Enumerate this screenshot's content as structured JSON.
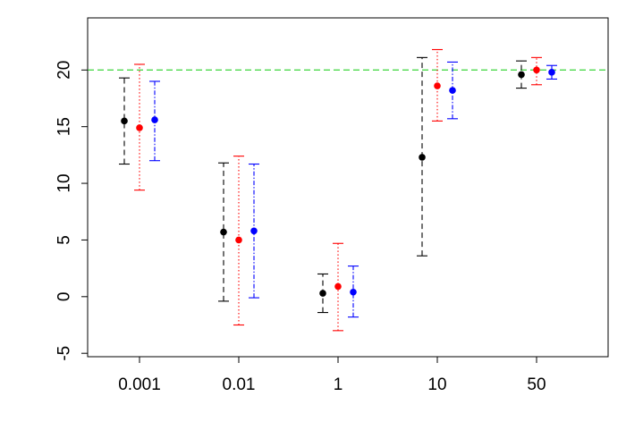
{
  "chart_data": {
    "type": "scatter",
    "subtype": "error-bar",
    "title": "",
    "xlabel": "",
    "ylabel": "",
    "categories": [
      "0.001",
      "0.01",
      "1",
      "10",
      "50"
    ],
    "y_ticks": [
      -5,
      0,
      5,
      10,
      15,
      20
    ],
    "ylim": [
      -5.3,
      24.6
    ],
    "grid": false,
    "reference_line": {
      "y": 20,
      "color": "#4cd94c",
      "style": "dashed"
    },
    "series": [
      {
        "color": "#000000",
        "line_style": "dashed",
        "points": [
          {
            "category": "0.001",
            "y": 15.5,
            "lower": 11.7,
            "upper": 19.3
          },
          {
            "category": "0.01",
            "y": 5.7,
            "lower": -0.4,
            "upper": 11.8
          },
          {
            "category": "1",
            "y": 0.3,
            "lower": -1.4,
            "upper": 2.0
          },
          {
            "category": "10",
            "y": 12.3,
            "lower": 3.6,
            "upper": 21.1
          },
          {
            "category": "50",
            "y": 19.6,
            "lower": 18.4,
            "upper": 20.8
          }
        ]
      },
      {
        "color": "#ff0000",
        "line_style": "dotted",
        "points": [
          {
            "category": "0.001",
            "y": 14.9,
            "lower": 9.4,
            "upper": 20.5
          },
          {
            "category": "0.01",
            "y": 5.0,
            "lower": -2.5,
            "upper": 12.4
          },
          {
            "category": "1",
            "y": 0.9,
            "lower": -3.0,
            "upper": 4.7
          },
          {
            "category": "10",
            "y": 18.6,
            "lower": 15.5,
            "upper": 21.8
          },
          {
            "category": "50",
            "y": 20.0,
            "lower": 18.7,
            "upper": 21.1
          }
        ]
      },
      {
        "color": "#0000ff",
        "line_style": "dashdot",
        "points": [
          {
            "category": "0.001",
            "y": 15.6,
            "lower": 12.0,
            "upper": 19.0
          },
          {
            "category": "0.01",
            "y": 5.8,
            "lower": -0.1,
            "upper": 11.7
          },
          {
            "category": "1",
            "y": 0.4,
            "lower": -1.8,
            "upper": 2.7
          },
          {
            "category": "10",
            "y": 18.2,
            "lower": 15.7,
            "upper": 20.7
          },
          {
            "category": "50",
            "y": 19.8,
            "lower": 19.2,
            "upper": 20.4
          }
        ]
      }
    ]
  }
}
